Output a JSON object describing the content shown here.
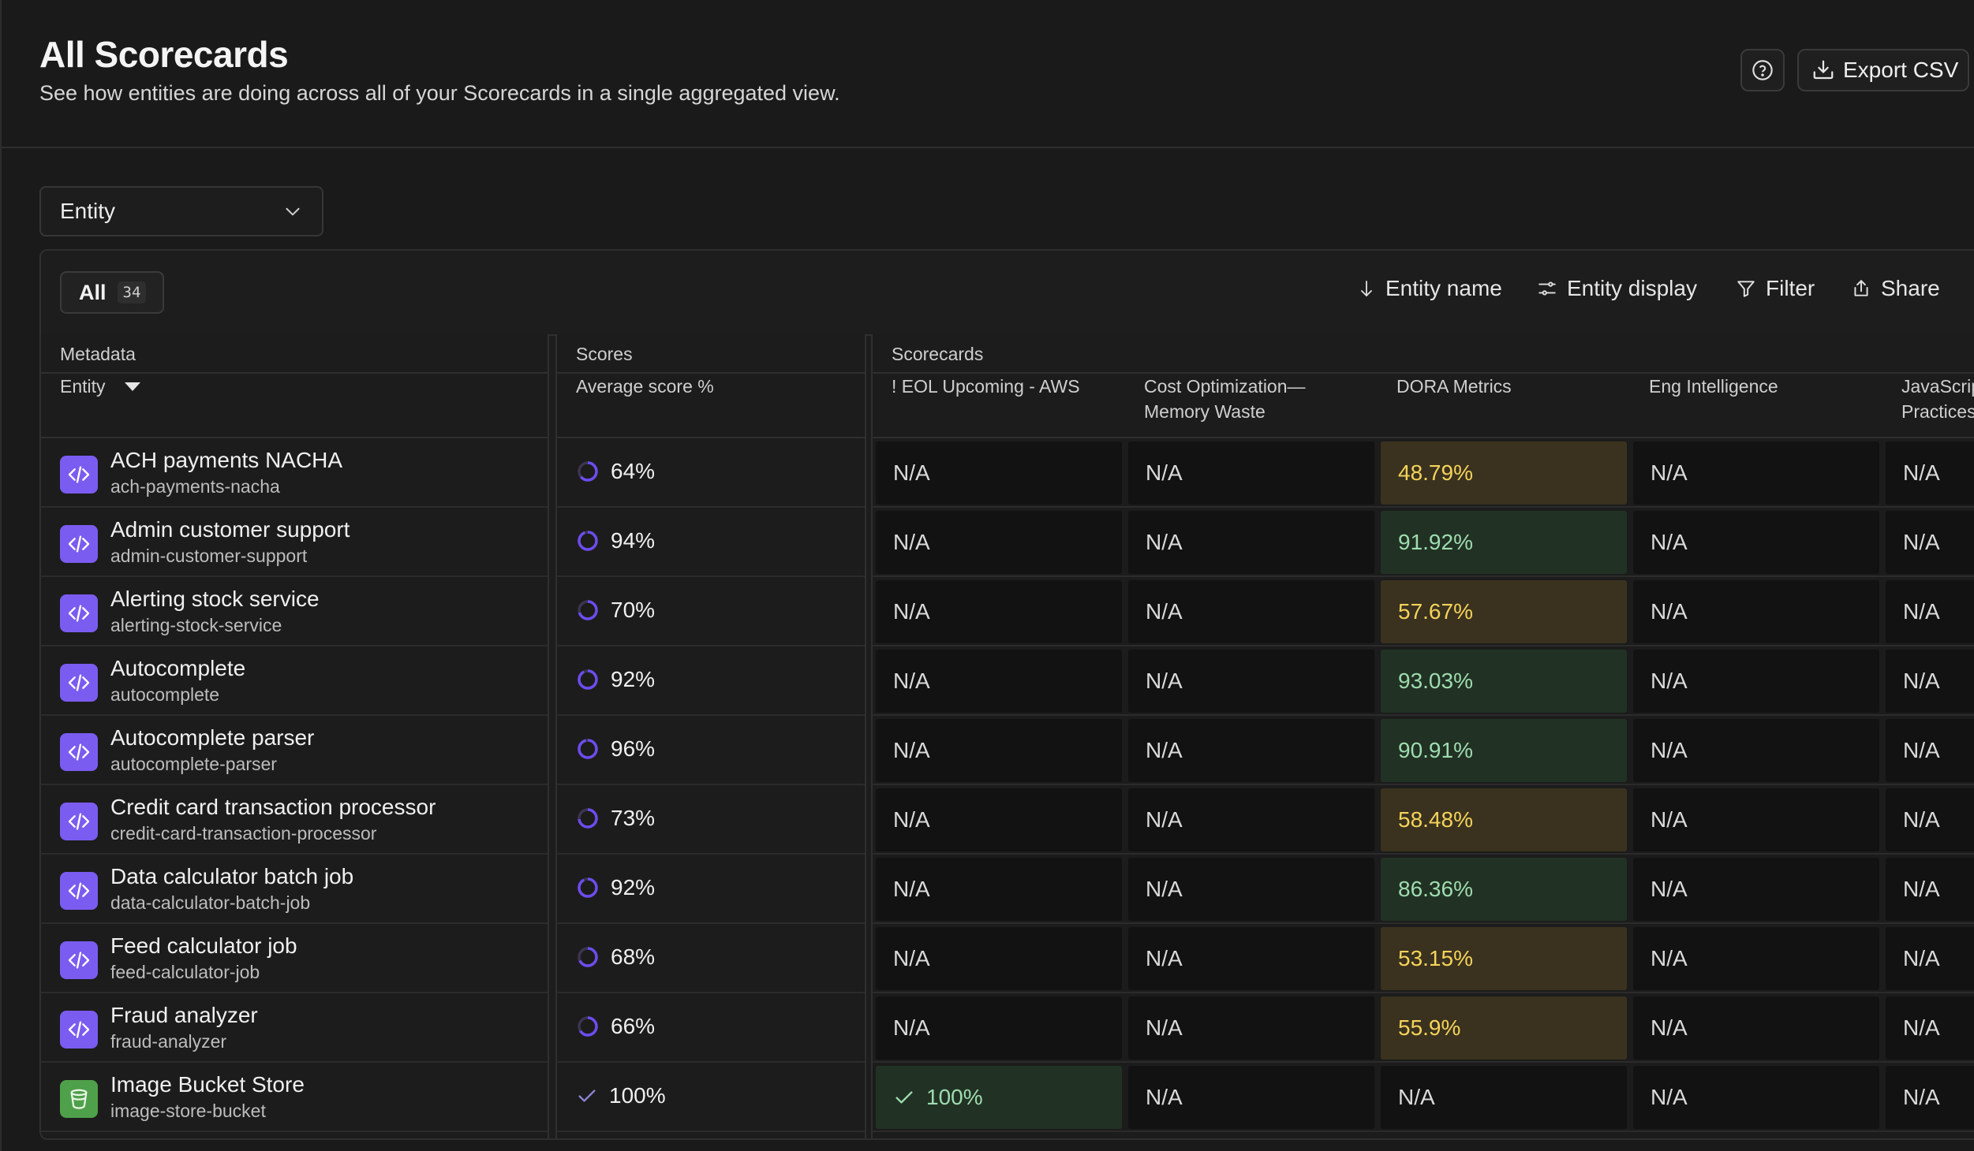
{
  "header": {
    "title": "All Scorecards",
    "subtitle": "See how entities are doing across all of your Scorecards in a single aggregated view.",
    "export_label": "Export CSV"
  },
  "group_by": {
    "selected": "Entity"
  },
  "toolbar": {
    "all_label": "All",
    "all_count": "34",
    "sort_label": "Entity name",
    "display_label": "Entity display",
    "filter_label": "Filter",
    "share_label": "Share"
  },
  "groups": {
    "metadata": "Metadata",
    "scores": "Scores",
    "scorecards": "Scorecards"
  },
  "columns": {
    "entity": "Entity",
    "average": "Average score %",
    "eol": "! EOL Upcoming - AWS",
    "cost_line1": "Cost Optimization—",
    "cost_line2": "Memory Waste",
    "dora": "DORA Metrics",
    "eng": "Eng Intelligence",
    "js_line1": "JavaScript",
    "js_line2": "Practices"
  },
  "rows": [
    {
      "name": "ACH payments NACHA",
      "tag": "ach-payments-nacha",
      "avg": "64%",
      "avg_value": 64,
      "icon": "code-icon",
      "eol": "N/A",
      "cost": "N/A",
      "dora": "48.79%",
      "dora_status": "yellow",
      "eng": "N/A",
      "js": "N/A"
    },
    {
      "name": "Admin customer support",
      "tag": "admin-customer-support",
      "avg": "94%",
      "avg_value": 94,
      "icon": "code-icon",
      "eol": "N/A",
      "cost": "N/A",
      "dora": "91.92%",
      "dora_status": "green",
      "eng": "N/A",
      "js": "N/A"
    },
    {
      "name": "Alerting stock service",
      "tag": "alerting-stock-service",
      "avg": "70%",
      "avg_value": 70,
      "icon": "code-icon",
      "eol": "N/A",
      "cost": "N/A",
      "dora": "57.67%",
      "dora_status": "yellow",
      "eng": "N/A",
      "js": "N/A"
    },
    {
      "name": "Autocomplete",
      "tag": "autocomplete",
      "avg": "92%",
      "avg_value": 92,
      "icon": "code-icon",
      "eol": "N/A",
      "cost": "N/A",
      "dora": "93.03%",
      "dora_status": "green",
      "eng": "N/A",
      "js": "N/A"
    },
    {
      "name": "Autocomplete parser",
      "tag": "autocomplete-parser",
      "avg": "96%",
      "avg_value": 96,
      "icon": "code-icon",
      "eol": "N/A",
      "cost": "N/A",
      "dora": "90.91%",
      "dora_status": "green",
      "eng": "N/A",
      "js": "N/A"
    },
    {
      "name": "Credit card transaction processor",
      "tag": "credit-card-transaction-processor",
      "avg": "73%",
      "avg_value": 73,
      "icon": "code-icon",
      "eol": "N/A",
      "cost": "N/A",
      "dora": "58.48%",
      "dora_status": "yellow",
      "eng": "N/A",
      "js": "N/A"
    },
    {
      "name": "Data calculator batch job",
      "tag": "data-calculator-batch-job",
      "avg": "92%",
      "avg_value": 92,
      "icon": "code-icon",
      "eol": "N/A",
      "cost": "N/A",
      "dora": "86.36%",
      "dora_status": "green",
      "eng": "N/A",
      "js": "N/A"
    },
    {
      "name": "Feed calculator job",
      "tag": "feed-calculator-job",
      "avg": "68%",
      "avg_value": 68,
      "icon": "code-icon",
      "eol": "N/A",
      "cost": "N/A",
      "dora": "53.15%",
      "dora_status": "yellow",
      "eng": "N/A",
      "js": "N/A"
    },
    {
      "name": "Fraud analyzer",
      "tag": "fraud-analyzer",
      "avg": "66%",
      "avg_value": 66,
      "icon": "code-icon",
      "eol": "N/A",
      "cost": "N/A",
      "dora": "55.9%",
      "dora_status": "yellow",
      "eng": "N/A",
      "js": "N/A"
    },
    {
      "name": "Image Bucket Store",
      "tag": "image-store-bucket",
      "avg": "100%",
      "avg_value": 100,
      "icon": "bucket-icon",
      "eol": "100%",
      "eol_status": "green",
      "cost": "N/A",
      "dora": "N/A",
      "eng": "N/A",
      "js": "N/A"
    }
  ],
  "colors": {
    "accent": "#7a5cf0",
    "green": "#9fdcb0",
    "yellow": "#f6d35a",
    "bucket": "#4ea04a"
  }
}
